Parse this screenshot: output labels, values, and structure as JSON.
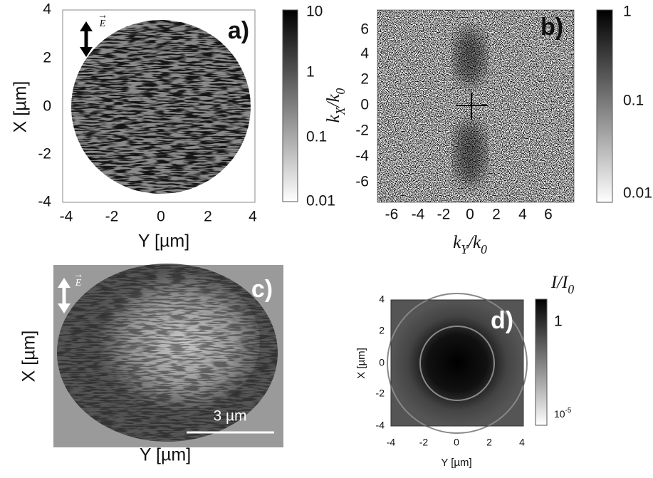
{
  "panels": {
    "a": {
      "label": "a)",
      "field_label": "E",
      "x_axis": "Y [µm]",
      "y_axis": "X [µm]",
      "xticks": [
        "-4",
        "-2",
        "0",
        "2",
        "4"
      ],
      "yticks": [
        "4",
        "2",
        "0",
        "-2",
        "-4"
      ],
      "colorbar_ticks": [
        "10",
        "1",
        "0.1",
        "0.01"
      ]
    },
    "b": {
      "label": "b)",
      "x_axis": [
        "k",
        "Y",
        "/k",
        "0"
      ],
      "y_axis": [
        "k",
        "X",
        "/k",
        "0"
      ],
      "xticks": [
        "-6",
        "-4",
        "-2",
        "0",
        "2",
        "4",
        "6"
      ],
      "yticks": [
        "6",
        "4",
        "2",
        "0",
        "-2",
        "-4",
        "-6"
      ],
      "colorbar_ticks": [
        "1",
        "0.1",
        "0.01"
      ]
    },
    "c": {
      "label": "c)",
      "field_label": "E",
      "x_axis": "Y [µm]",
      "y_axis": "X [µm]",
      "scale_bar": "3 µm"
    },
    "d": {
      "label": "d)",
      "x_axis": "Y [µm]",
      "y_axis": "X [µm]",
      "xticks": [
        "-4",
        "-2",
        "0",
        "2",
        "4"
      ],
      "yticks": [
        "4",
        "2",
        "0",
        "-2",
        "-4"
      ],
      "colorbar_title": [
        "I/I",
        "0"
      ],
      "colorbar_ticks": [
        "1",
        [
          "10",
          "-5"
        ]
      ]
    }
  }
}
